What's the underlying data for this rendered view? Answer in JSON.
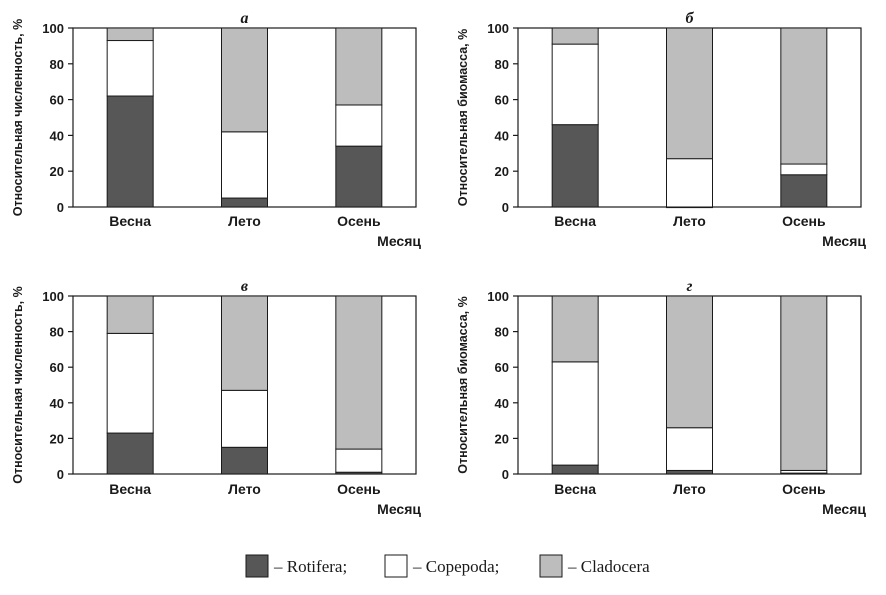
{
  "colors": {
    "Rotifera": "#575757",
    "Copepoda": "#ffffff",
    "Cladocera": "#bdbdbd"
  },
  "legend": {
    "items": [
      {
        "series": "Rotifera",
        "label": "– Rotifera;"
      },
      {
        "series": "Copepoda",
        "label": "– Copepoda;"
      },
      {
        "series": "Cladocera",
        "label": "– Cladocera"
      }
    ]
  },
  "chart_data": [
    {
      "type": "bar",
      "stacked": true,
      "panel_label": "а",
      "ylabel": "Относительная численность, %",
      "xlabel": "Месяц",
      "ylim": [
        0,
        100
      ],
      "yticks": [
        "0",
        "20",
        "40",
        "60",
        "80",
        "100"
      ],
      "categories": [
        "Весна",
        "Лето",
        "Осень"
      ],
      "series": [
        {
          "name": "Rotifera",
          "values": [
            62,
            5,
            34
          ]
        },
        {
          "name": "Copepoda",
          "values": [
            31,
            37,
            23
          ]
        },
        {
          "name": "Cladocera",
          "values": [
            7,
            58,
            43
          ]
        }
      ]
    },
    {
      "type": "bar",
      "stacked": true,
      "panel_label": "б",
      "ylabel": "Относительная биомасса, %",
      "xlabel": "Месяц",
      "ylim": [
        0,
        100
      ],
      "yticks": [
        "0",
        "20",
        "40",
        "60",
        "80",
        "100"
      ],
      "categories": [
        "Весна",
        "Лето",
        "Осень"
      ],
      "series": [
        {
          "name": "Rotifera",
          "values": [
            46,
            0,
            18
          ]
        },
        {
          "name": "Copepoda",
          "values": [
            45,
            27,
            6
          ]
        },
        {
          "name": "Cladocera",
          "values": [
            9,
            73,
            76
          ]
        }
      ]
    },
    {
      "type": "bar",
      "stacked": true,
      "panel_label": "в",
      "ylabel": "Относительная численность, %",
      "xlabel": "Месяц",
      "ylim": [
        0,
        100
      ],
      "yticks": [
        "0",
        "20",
        "40",
        "60",
        "80",
        "100"
      ],
      "categories": [
        "Весна",
        "Лето",
        "Осень"
      ],
      "series": [
        {
          "name": "Rotifera",
          "values": [
            23,
            15,
            1
          ]
        },
        {
          "name": "Copepoda",
          "values": [
            56,
            32,
            13
          ]
        },
        {
          "name": "Cladocera",
          "values": [
            21,
            53,
            86
          ]
        }
      ]
    },
    {
      "type": "bar",
      "stacked": true,
      "panel_label": "г",
      "ylabel": "Относительная биомасса, %",
      "xlabel": "Месяц",
      "ylim": [
        0,
        100
      ],
      "yticks": [
        "0",
        "20",
        "40",
        "60",
        "80",
        "100"
      ],
      "categories": [
        "Весна",
        "Лето",
        "Осень"
      ],
      "series": [
        {
          "name": "Rotifera",
          "values": [
            5,
            2,
            0.5
          ]
        },
        {
          "name": "Copepoda",
          "values": [
            58,
            24,
            1.5
          ]
        },
        {
          "name": "Cladocera",
          "values": [
            37,
            74,
            98
          ]
        }
      ]
    }
  ]
}
